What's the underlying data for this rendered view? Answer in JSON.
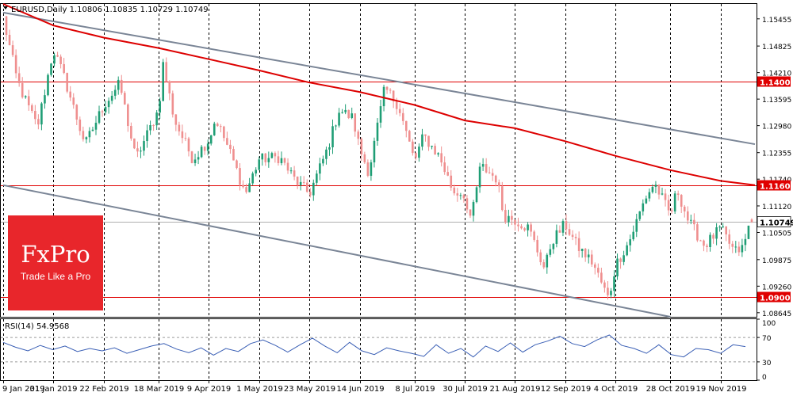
{
  "chart_data": [
    {
      "type": "candlestick",
      "title": "EURUSD,Daily  1.10806 1.10835 1.10729 1.10749",
      "symbol": "EURUSD",
      "timeframe": "Daily",
      "last_bar": {
        "open": 1.10806,
        "high": 1.10835,
        "low": 1.10729,
        "close": 1.10749
      },
      "x_ticks": [
        "9 Jan 2019",
        "31 Jan 2019",
        "22 Feb 2019",
        "18 Mar 2019",
        "9 Apr 2019",
        "1 May 2019",
        "23 May 2019",
        "14 Jun 2019",
        "8 Jul 2019",
        "30 Jul 2019",
        "21 Aug 2019",
        "12 Sep 2019",
        "4 Oct 2019",
        "28 Oct 2019",
        "19 Nov 2019"
      ],
      "y_ticks": [
        "1.15455",
        "1.14825",
        "1.14210",
        "1.13595",
        "1.12980",
        "1.12355",
        "1.11740",
        "1.11120",
        "1.10505",
        "1.09875",
        "1.09260",
        "1.08645"
      ],
      "ylim": [
        1.0855,
        1.158
      ],
      "grid": "vertical dashed",
      "price_path": [
        [
          "9 Jan 2019",
          1.1547
        ],
        [
          "15 Jan 2019",
          1.1405
        ],
        [
          "18 Jan 2019",
          1.1365
        ],
        [
          "24 Jan 2019",
          1.1295
        ],
        [
          "31 Jan 2019",
          1.1475
        ],
        [
          "5 Feb 2019",
          1.1405
        ],
        [
          "12 Feb 2019",
          1.1285
        ],
        [
          "14 Feb 2019",
          1.1255
        ],
        [
          "22 Feb 2019",
          1.1345
        ],
        [
          "1 Mar 2019",
          1.1395
        ],
        [
          "8 Mar 2019",
          1.122
        ],
        [
          "18 Mar 2019",
          1.1335
        ],
        [
          "20 Mar 2019",
          1.144
        ],
        [
          "25 Mar 2019",
          1.131
        ],
        [
          "2 Apr 2019",
          1.122
        ],
        [
          "9 Apr 2019",
          1.1265
        ],
        [
          "12 Apr 2019",
          1.1315
        ],
        [
          "18 Apr 2019",
          1.124
        ],
        [
          "25 Apr 2019",
          1.114
        ],
        [
          "1 May 2019",
          1.122
        ],
        [
          "10 May 2019",
          1.1225
        ],
        [
          "17 May 2019",
          1.117
        ],
        [
          "23 May 2019",
          1.114
        ],
        [
          "31 May 2019",
          1.1245
        ],
        [
          "5 Jun 2019",
          1.1335
        ],
        [
          "11 Jun 2019",
          1.1315
        ],
        [
          "14 Jun 2019",
          1.1245
        ],
        [
          "18 Jun 2019",
          1.119
        ],
        [
          "25 Jun 2019",
          1.1385
        ],
        [
          "1 Jul 2019",
          1.1345
        ],
        [
          "8 Jul 2019",
          1.1215
        ],
        [
          "12 Jul 2019",
          1.1275
        ],
        [
          "19 Jul 2019",
          1.1225
        ],
        [
          "25 Jul 2019",
          1.1145
        ],
        [
          "30 Jul 2019",
          1.114
        ],
        [
          "1 Aug 2019",
          1.1065
        ],
        [
          "6 Aug 2019",
          1.1205
        ],
        [
          "13 Aug 2019",
          1.1175
        ],
        [
          "16 Aug 2019",
          1.109
        ],
        [
          "21 Aug 2019",
          1.108
        ],
        [
          "27 Aug 2019",
          1.106
        ],
        [
          "3 Sep 2019",
          1.0965
        ],
        [
          "6 Sep 2019",
          1.103
        ],
        [
          "12 Sep 2019",
          1.107
        ],
        [
          "17 Sep 2019",
          1.102
        ],
        [
          "24 Sep 2019",
          1.098
        ],
        [
          "1 Oct 2019",
          1.0895
        ],
        [
          "4 Oct 2019",
          1.0975
        ],
        [
          "10 Oct 2019",
          1.103
        ],
        [
          "17 Oct 2019",
          1.113
        ],
        [
          "21 Oct 2019",
          1.1165
        ],
        [
          "28 Oct 2019",
          1.109
        ],
        [
          "31 Oct 2019",
          1.115
        ],
        [
          "5 Nov 2019",
          1.1075
        ],
        [
          "12 Nov 2019",
          1.102
        ],
        [
          "19 Nov 2019",
          1.106
        ],
        [
          "25 Nov 2019",
          1.1005
        ],
        [
          "29 Nov 2019",
          1.1015
        ],
        [
          "2 Dec 2019",
          1.108
        ],
        [
          "4 Dec 2019",
          1.1075
        ]
      ],
      "moving_average": [
        [
          "9 Jan 2019",
          1.158
        ],
        [
          "31 Jan 2019",
          1.153
        ],
        [
          "22 Feb 2019",
          1.1502
        ],
        [
          "18 Mar 2019",
          1.1478
        ],
        [
          "9 Apr 2019",
          1.1452
        ],
        [
          "1 May 2019",
          1.1426
        ],
        [
          "23 May 2019",
          1.1398
        ],
        [
          "14 Jun 2019",
          1.1376
        ],
        [
          "8 Jul 2019",
          1.1346
        ],
        [
          "30 Jul 2019",
          1.131
        ],
        [
          "21 Aug 2019",
          1.1292
        ],
        [
          "12 Sep 2019",
          1.1262
        ],
        [
          "4 Oct 2019",
          1.1228
        ],
        [
          "28 Oct 2019",
          1.1195
        ],
        [
          "19 Nov 2019",
          1.117
        ],
        [
          "4 Dec 2019",
          1.116
        ]
      ],
      "trend_channel": [
        {
          "from": [
            "9 Jan 2019",
            1.156
          ],
          "to": [
            "4 Dec 2019",
            1.1255
          ]
        },
        {
          "from": [
            "9 Jan 2019",
            1.116
          ],
          "to": [
            "28 Oct 2019",
            1.0855
          ]
        }
      ],
      "horizontal_levels": [
        {
          "value": 1.14,
          "label": "1.14000",
          "color": "#e00000"
        },
        {
          "value": 1.116,
          "label": "1.11600",
          "color": "#e00000"
        },
        {
          "value": 1.09,
          "label": "1.09000",
          "color": "#e00000"
        },
        {
          "value": 1.10749,
          "label": "1.10749",
          "color": "#b0b0b0"
        }
      ],
      "colors": {
        "bull": "#1f9e75",
        "bear": "#ef8f8f",
        "ma": "#dd0000",
        "channel": "#7a8596",
        "level": "#e00000"
      }
    },
    {
      "type": "line",
      "title": "RSI(14) 54.9568",
      "name": "RSI(14)",
      "value": 54.9568,
      "y_ticks": [
        "100",
        "70",
        "30",
        "0"
      ],
      "ylim": [
        0,
        100
      ],
      "levels": [
        70,
        30
      ],
      "color": "#3a5fb5",
      "y": [
        62,
        54,
        48,
        57,
        50,
        56,
        47,
        52,
        48,
        53,
        44,
        50,
        56,
        60,
        51,
        45,
        53,
        41,
        52,
        47,
        60,
        66,
        57,
        46,
        58,
        69,
        56,
        45,
        62,
        48,
        42,
        53,
        48,
        44,
        39,
        58,
        44,
        52,
        38,
        56,
        47,
        61,
        46,
        58,
        64,
        72,
        60,
        55,
        66,
        74,
        57,
        52,
        44,
        58,
        42,
        38,
        52,
        50,
        44,
        58,
        55
      ]
    }
  ],
  "logo": {
    "name": "FxPro",
    "tagline": "Trade Like a Pro"
  }
}
